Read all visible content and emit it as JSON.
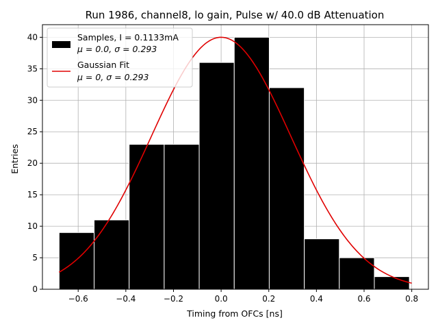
{
  "chart_data": {
    "type": "bar",
    "title": "Run 1986, channel8, lo gain, Pulse w/ 40.0 dB Attenuation",
    "xlabel": "Timing from OFCs [ns]",
    "ylabel": "Entries",
    "xlim": [
      -0.75,
      0.87
    ],
    "ylim": [
      0,
      42
    ],
    "grid": true,
    "x_ticks": [
      -0.6,
      -0.4,
      -0.2,
      0.0,
      0.2,
      0.4,
      0.6,
      0.8
    ],
    "x_tick_labels": [
      "−0.6",
      "−0.4",
      "−0.2",
      "0.0",
      "0.2",
      "0.4",
      "0.6",
      "0.8"
    ],
    "y_ticks": [
      0,
      5,
      10,
      15,
      20,
      25,
      30,
      35,
      40
    ],
    "y_tick_labels": [
      "0",
      "5",
      "10",
      "15",
      "20",
      "25",
      "30",
      "35",
      "40"
    ],
    "bin_edges": [
      -0.68,
      -0.533,
      -0.386,
      -0.239,
      -0.092,
      0.055,
      0.202,
      0.349,
      0.496,
      0.643,
      0.79
    ],
    "bin_counts": [
      9,
      11,
      23,
      23,
      36,
      40,
      32,
      8,
      5,
      2
    ],
    "bar_color": "#000000",
    "bar_edge_color": "#ffffff",
    "series": [
      {
        "name": "Samples, I = 0.1133mA",
        "stats": "μ = 0.0, σ = 0.293",
        "kind": "histogram",
        "values": [
          9,
          11,
          23,
          23,
          36,
          40,
          32,
          8,
          5,
          2
        ]
      },
      {
        "name": "Gaussian Fit",
        "stats": "μ = 0, σ = 0.293",
        "kind": "line",
        "color": "#e00000",
        "mu": 0.0,
        "sigma": 0.293,
        "amplitude": 40,
        "x_range": [
          -0.68,
          0.8
        ]
      }
    ],
    "legend_position": "top-left"
  }
}
